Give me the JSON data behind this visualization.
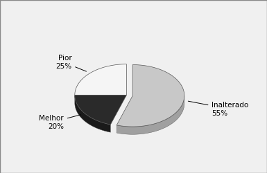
{
  "labels": [
    "Inalterado",
    "Melhor",
    "Pior"
  ],
  "values": [
    55,
    20,
    25
  ],
  "colors_top": [
    "#c8c8c8",
    "#2a2a2a",
    "#f5f5f5"
  ],
  "colors_side": [
    "#a0a0a0",
    "#1a1a1a",
    "#d8d8d8"
  ],
  "explode": [
    0.12,
    0,
    0
  ],
  "startangle": 90,
  "depth": 0.12,
  "label_fontsize": 7.5,
  "legend_fontsize": 8,
  "legend_labels": [
    "Inalterado",
    "Melhor",
    "Pior"
  ],
  "legend_colors": [
    "#c8c8c8",
    "#2a2a2a",
    "#f5f5f5"
  ],
  "background_color": "#f0f0f0",
  "label_texts": [
    "Inalterado\n55%",
    "Melhor\n20%",
    "Pior\n25%"
  ]
}
